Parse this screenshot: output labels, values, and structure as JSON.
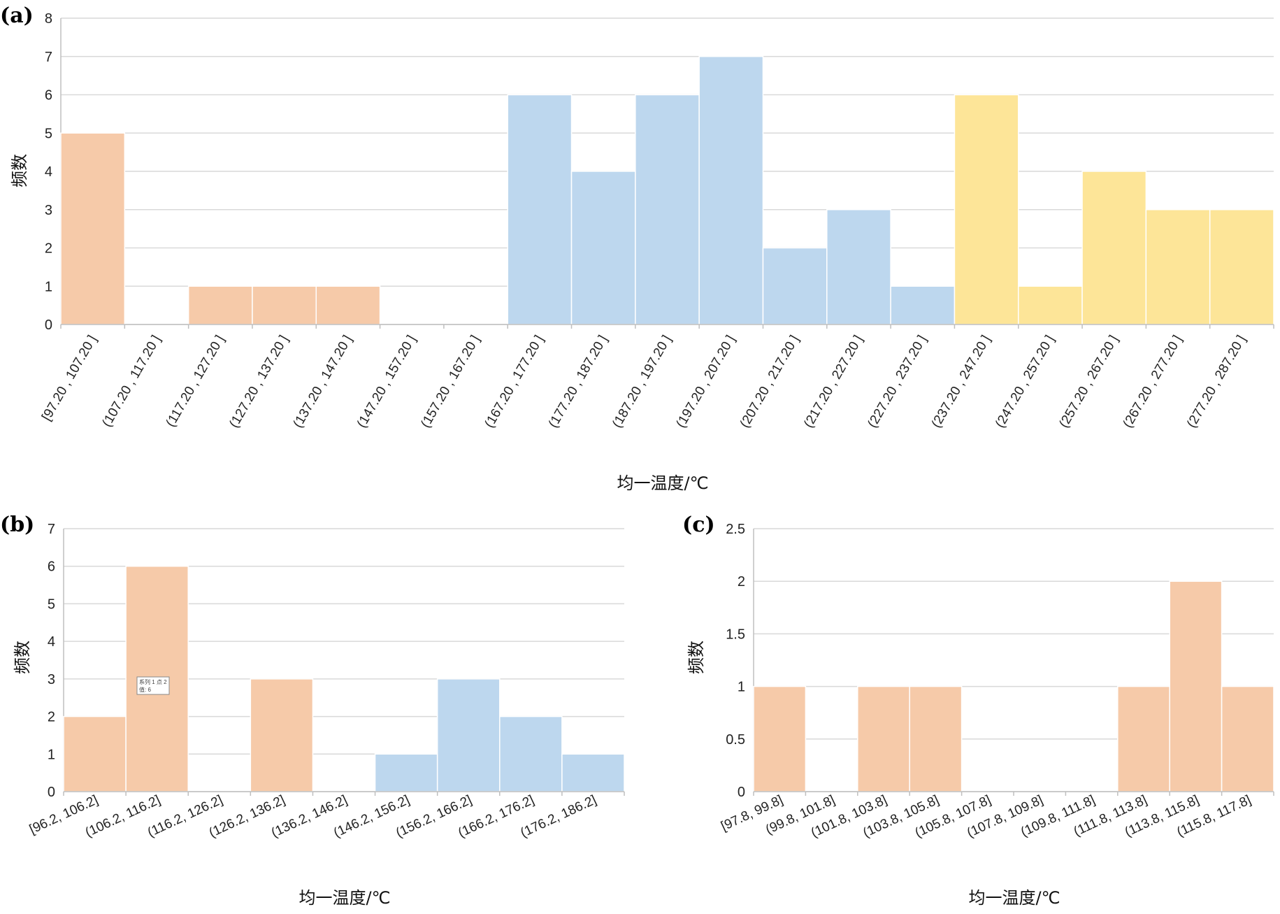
{
  "colors": {
    "peach": "#f6caa9",
    "blue": "#bdd7ee",
    "yellow": "#fde598"
  },
  "chart_data": [
    {
      "panel": "(a)",
      "type": "bar",
      "ylabel": "频数",
      "xlabel": "均一温度/℃",
      "ylim": [
        0,
        8
      ],
      "yticks": [
        "0",
        "1",
        "2",
        "3",
        "4",
        "5",
        "6",
        "7",
        "8"
      ],
      "grid": true,
      "categories": [
        "[97.20 , 107.20 ]",
        "(107.20 , 117.20 ]",
        "(117.20 , 127.20 ]",
        "(127.20 , 137.20 ]",
        "(137.20 , 147.20 ]",
        "(147.20 , 157.20 ]",
        "(157.20 , 167.20 ]",
        "(167.20 , 177.20 ]",
        "(177.20 , 187.20 ]",
        "(187.20 , 197.20 ]",
        "(197.20 , 207.20 ]",
        "(207.20 , 217.20 ]",
        "(217.20 , 227.20 ]",
        "(227.20 , 237.20 ]",
        "(237.20 , 247.20 ]",
        "(247.20 , 257.20 ]",
        "(257.20 , 267.20 ]",
        "(267.20 , 277.20 ]",
        "(277.20 , 287.20 ]"
      ],
      "values": [
        5,
        0,
        1,
        1,
        1,
        0,
        0,
        6,
        4,
        6,
        7,
        2,
        3,
        1,
        6,
        1,
        4,
        3,
        3
      ],
      "bar_colors": [
        "peach",
        "peach",
        "peach",
        "peach",
        "peach",
        "peach",
        "peach",
        "blue",
        "blue",
        "blue",
        "blue",
        "blue",
        "blue",
        "blue",
        "yellow",
        "yellow",
        "yellow",
        "yellow",
        "yellow"
      ]
    },
    {
      "panel": "(b)",
      "type": "bar",
      "ylabel": "频数",
      "xlabel": "均一温度/℃",
      "ylim": [
        0,
        7
      ],
      "yticks": [
        "0",
        "1",
        "2",
        "3",
        "4",
        "5",
        "6",
        "7"
      ],
      "grid": true,
      "categories": [
        "[96.2, 106.2]",
        "(106.2, 116.2]",
        "(116.2, 126.2]",
        "(126.2, 136.2]",
        "(136.2, 146.2]",
        "(146.2, 156.2]",
        "(156.2, 166.2]",
        "(166.2, 176.2]",
        "(176.2, 186.2]"
      ],
      "values": [
        2,
        6,
        0,
        3,
        0,
        1,
        3,
        2,
        1
      ],
      "bar_colors": [
        "peach",
        "peach",
        "peach",
        "peach",
        "peach",
        "blue",
        "blue",
        "blue",
        "blue"
      ],
      "tooltip": {
        "line1": "系列 1 点 2",
        "line2": "值: 6"
      }
    },
    {
      "panel": "(c)",
      "type": "bar",
      "ylabel": "频数",
      "xlabel": "均一温度/℃",
      "ylim": [
        0,
        2.5
      ],
      "yticks": [
        "0",
        "0.5",
        "1",
        "1.5",
        "2",
        "2.5"
      ],
      "grid": true,
      "categories": [
        "[97.8, 99.8]",
        "(99.8, 101.8]",
        "(101.8, 103.8]",
        "(103.8, 105.8]",
        "(105.8, 107.8]",
        "(107.8, 109.8]",
        "(109.8, 111.8]",
        "(111.8, 113.8]",
        "(113.8, 115.8]",
        "(115.8, 117.8]"
      ],
      "values": [
        1,
        0,
        1,
        1,
        0,
        0,
        0,
        1,
        2,
        1
      ],
      "bar_colors": [
        "peach",
        "peach",
        "peach",
        "peach",
        "peach",
        "peach",
        "peach",
        "peach",
        "peach",
        "peach"
      ]
    }
  ]
}
